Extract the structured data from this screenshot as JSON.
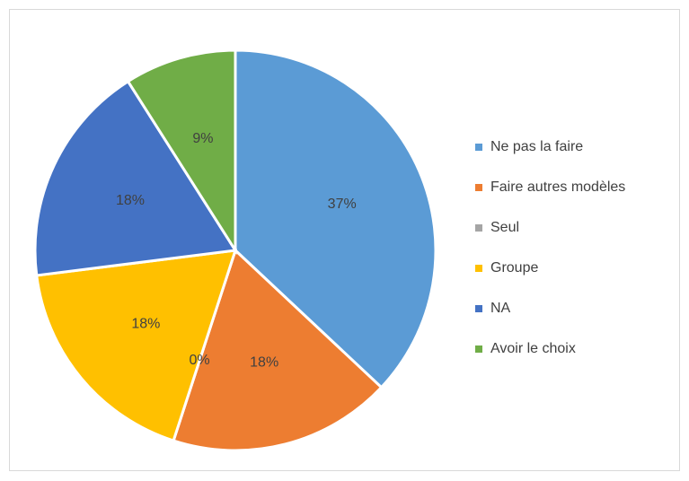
{
  "chart_data": {
    "type": "pie",
    "categories": [
      "Ne pas la faire",
      "Faire autres modèles",
      "Seul",
      "Groupe",
      "NA",
      "Avoir le choix"
    ],
    "values": [
      37,
      18,
      0,
      18,
      18,
      9
    ],
    "value_labels": [
      "37%",
      "18%",
      "0%",
      "18%",
      "18%",
      "9%"
    ],
    "colors": [
      "#5B9BD5",
      "#ED7D31",
      "#A5A5A5",
      "#FFC000",
      "#4472C4",
      "#70AD47"
    ],
    "legend": "right"
  }
}
